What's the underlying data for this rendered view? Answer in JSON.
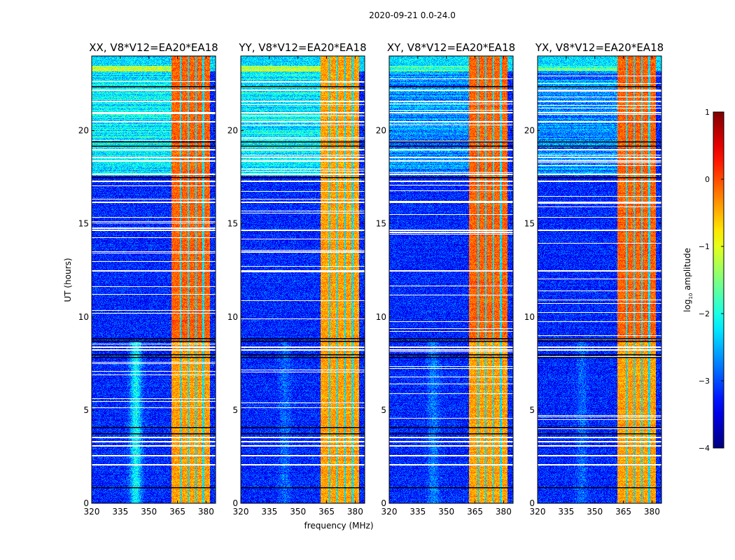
{
  "chart_data": {
    "type": "heatmap",
    "title": "2020-09-21 0.0-24.0",
    "xlabel": "frequency (MHz)",
    "ylabel": "UT (hours)",
    "xlim": [
      320,
      385
    ],
    "ylim": [
      0,
      24
    ],
    "xticks": [
      "320",
      "335",
      "350",
      "365",
      "380"
    ],
    "xtick_values": [
      320,
      335,
      350,
      365,
      380
    ],
    "yticks": [
      "0",
      "5",
      "10",
      "15",
      "20"
    ],
    "ytick_values": [
      0,
      5,
      10,
      15,
      20
    ],
    "panels": [
      {
        "title": "XX, V8*V12=EA20*EA18",
        "cyan_feature_strength": 1.0
      },
      {
        "title": "YY, V8*V12=EA20*EA18",
        "cyan_feature_strength": 0.3
      },
      {
        "title": "XY, V8*V12=EA20*EA18",
        "cyan_feature_strength": 0.4
      },
      {
        "title": "YX, V8*V12=EA20*EA18",
        "cyan_feature_strength": 0.3
      }
    ],
    "rfi_band_mhz": [
      361.5,
      382
    ],
    "background_log_amplitude": -3.2,
    "rfi_log_amplitude": -0.5,
    "flagged_hours_black": [
      0.85,
      3.75,
      4.1,
      7.85,
      8.0,
      8.7,
      8.85,
      17.5,
      19.2,
      19.4,
      22.4
    ],
    "flagged_hours_white": [
      3.55,
      3.35,
      3.1,
      2.6,
      2.1,
      8.25,
      8.4,
      12.5,
      14.7,
      16.2,
      17.3,
      17.7,
      18.4,
      18.6,
      19.0,
      20.5,
      21.0,
      21.6,
      22.2
    ],
    "colorbar": {
      "label_prefix": "log",
      "label_sub": "10",
      "label_suffix": " amplitude",
      "range": [
        -4,
        1
      ],
      "ticks": [
        "1",
        "0",
        "−1",
        "−2",
        "−3",
        "−4"
      ],
      "tick_values": [
        1,
        0,
        -1,
        -2,
        -3,
        -4
      ],
      "colormap": "jet"
    }
  }
}
